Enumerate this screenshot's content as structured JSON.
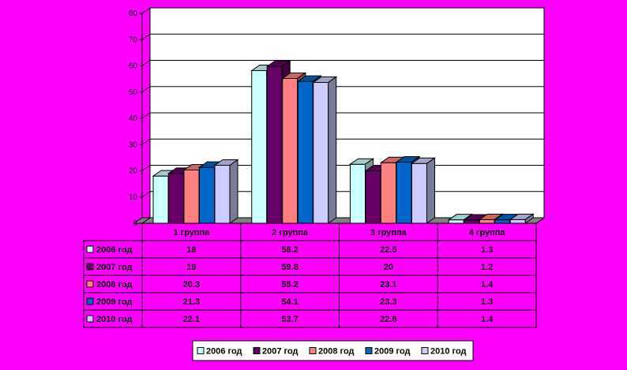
{
  "chart_data": {
    "type": "bar",
    "categories": [
      "1 группа",
      "2 группа",
      "3 группа",
      "4 группа"
    ],
    "series": [
      {
        "name": "2006 год",
        "color": "#ccffff",
        "values": [
          18,
          58.2,
          22.5,
          1.3
        ],
        "labels": [
          "18",
          "58.2",
          "22.5",
          "1.3"
        ]
      },
      {
        "name": "2007 год",
        "color": "#660066",
        "values": [
          19,
          59.8,
          20,
          1.2
        ],
        "labels": [
          "19",
          "59.8",
          "20",
          "1.2"
        ]
      },
      {
        "name": "2008 год",
        "color": "#ff8080",
        "values": [
          20.3,
          55.2,
          23.1,
          1.4
        ],
        "labels": [
          "20.3",
          "55.2",
          "23.1",
          "1.4"
        ]
      },
      {
        "name": "2009 год",
        "color": "#0066cc",
        "values": [
          21.3,
          54.1,
          23.3,
          1.3
        ],
        "labels": [
          "21.3",
          "54.1",
          "23.3",
          "1.3"
        ]
      },
      {
        "name": "2010 год",
        "color": "#ccccff",
        "values": [
          22.1,
          53.7,
          22.8,
          1.4
        ],
        "labels": [
          "22.1",
          "53.7",
          "22.8",
          "1.4"
        ]
      }
    ],
    "yticks": [
      "0",
      "10",
      "20",
      "30",
      "40",
      "50",
      "60",
      "70",
      "80"
    ],
    "ylim": [
      0,
      80
    ],
    "grid": true,
    "legend": "bottom",
    "data_table": true,
    "title": "",
    "xlabel": "",
    "ylabel": ""
  }
}
